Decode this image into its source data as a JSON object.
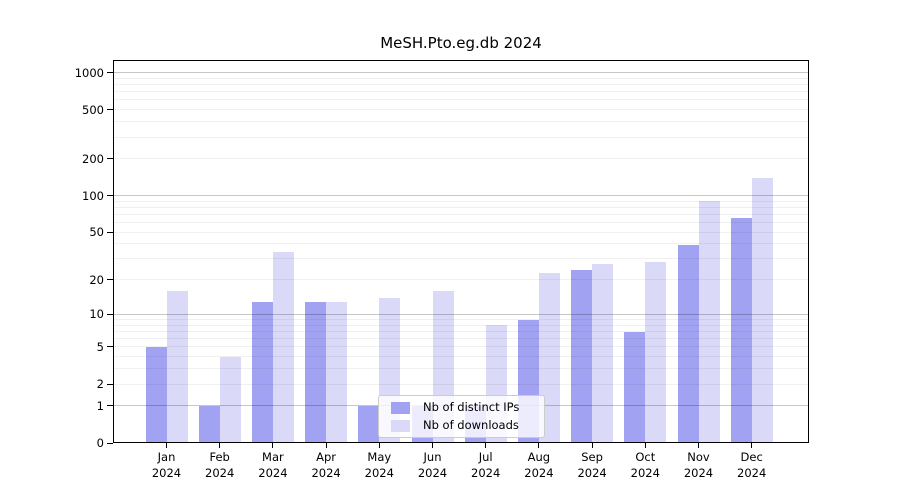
{
  "chart_data": {
    "type": "bar",
    "title": "MeSH.Pto.eg.db 2024",
    "categories": [
      "Jan",
      "Feb",
      "Mar",
      "Apr",
      "May",
      "Jun",
      "Jul",
      "Aug",
      "Sep",
      "Oct",
      "Nov",
      "Dec"
    ],
    "year_label": "2024",
    "series": [
      {
        "name": "Nb of distinct IPs",
        "color": "#a2a2f2",
        "values": [
          5,
          1,
          13,
          13,
          1,
          1,
          1,
          9,
          24,
          7,
          39,
          66
        ]
      },
      {
        "name": "Nb of downloads",
        "color": "#dadaf8",
        "values": [
          16,
          4,
          34,
          13,
          14,
          16,
          8,
          23,
          27,
          28,
          90,
          140
        ]
      }
    ],
    "xlabel": "",
    "ylabel": "",
    "yscale": "log1p",
    "yticks": [
      0,
      1,
      2,
      5,
      10,
      20,
      50,
      100,
      200,
      500,
      1000
    ],
    "ylim": [
      0,
      1266
    ],
    "grid": true,
    "legend_position": "lower center",
    "colors": {
      "background": "#ffffff",
      "spine": "#000000",
      "major_grid": "#c9c9c9",
      "minor_grid": "#efefef"
    }
  }
}
